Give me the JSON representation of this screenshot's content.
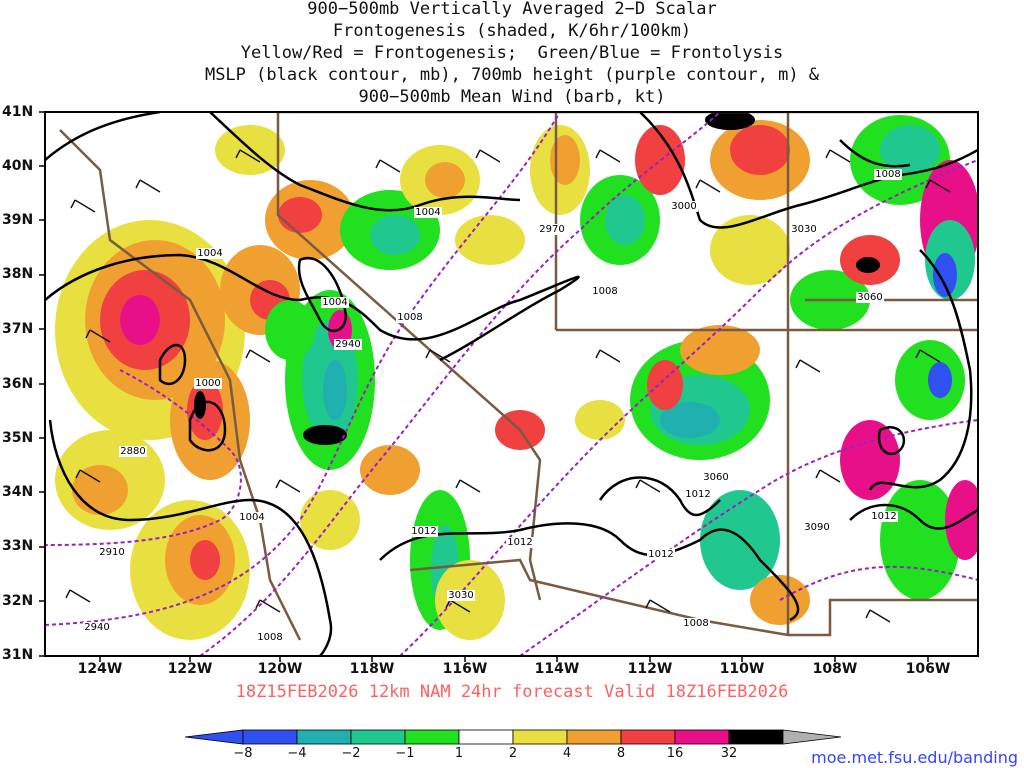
{
  "title_lines": [
    "900−500mb Vertically Averaged 2−D Scalar",
    "Frontogenesis (shaded, K/6hr/100km)",
    "Yellow/Red = Frontogenesis;  Green/Blue = Frontolysis",
    "MSLP (black contour, mb), 700mb height (purple contour, m) &",
    "900−500mb Mean Wind (barb, kt)"
  ],
  "footer": "18Z15FEB2026 12km NAM 24hr forecast Valid 18Z16FEB2026",
  "credit": "moe.met.fsu.edu/banding",
  "lat_labels": [
    "41N",
    "40N",
    "39N",
    "38N",
    "37N",
    "36N",
    "35N",
    "34N",
    "33N",
    "32N",
    "31N"
  ],
  "lon_labels": [
    "124W",
    "122W",
    "120W",
    "118W",
    "116W",
    "114W",
    "112W",
    "110W",
    "108W",
    "106W"
  ],
  "colorbar": {
    "labels": [
      "−8",
      "−4",
      "−2",
      "−1",
      "1",
      "2",
      "4",
      "8",
      "16",
      "32"
    ],
    "colors": [
      "#3050f0",
      "#20b0b0",
      "#20c890",
      "#20e020",
      "#ffffff",
      "#e8e040",
      "#f0a030",
      "#f04040",
      "#e81088",
      "#000000"
    ],
    "arrow_low": "#3050f0",
    "arrow_high": "#b0b0b0"
  },
  "mslp_labels": [
    "1004",
    "1004",
    "1004",
    "1008",
    "1000",
    "1004",
    "1008",
    "1012",
    "1012",
    "1008",
    "1012",
    "1008",
    "1012",
    "1012",
    "1008"
  ],
  "height_labels": [
    "2970",
    "3000",
    "3030",
    "3060",
    "2940",
    "2880",
    "2910",
    "2940",
    "3060",
    "3090",
    "3030"
  ]
}
